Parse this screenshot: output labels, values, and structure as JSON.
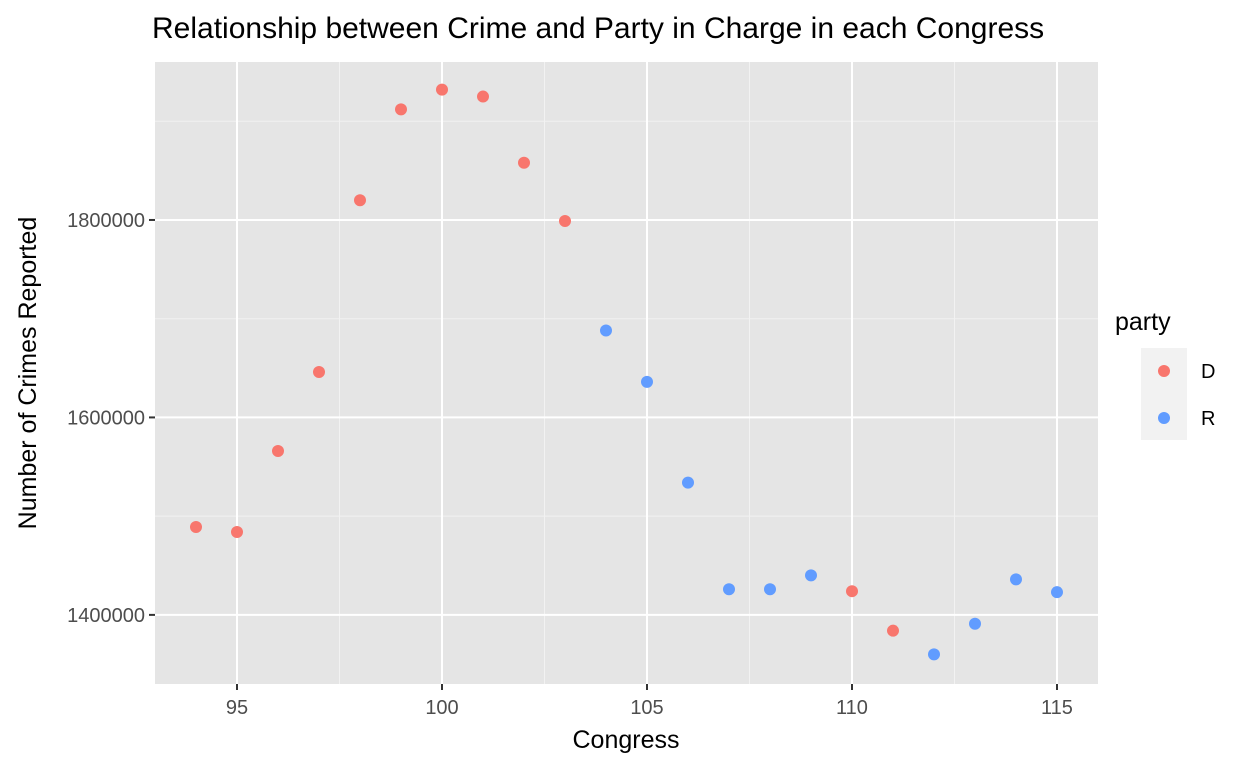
{
  "chart_data": {
    "type": "scatter",
    "title": "Relationship between Crime and Party in Charge in each Congress",
    "xlabel": "Congress",
    "ylabel": "Number of Crimes Reported",
    "xlim": [
      93,
      116
    ],
    "ylim": [
      1330000,
      1960000
    ],
    "x_ticks": [
      95,
      100,
      105,
      110,
      115
    ],
    "x_tick_labels": [
      "95",
      "100",
      "105",
      "110",
      "115"
    ],
    "x_minor_ticks": [
      97.5,
      102.5,
      107.5,
      112.5
    ],
    "y_ticks": [
      1400000,
      1600000,
      1800000
    ],
    "y_tick_labels": [
      "1400000",
      "1600000",
      "1800000"
    ],
    "y_minor_ticks": [
      1500000,
      1700000,
      1900000
    ],
    "grid": true,
    "background_color": "#e5e5e5",
    "legend": {
      "title": "party",
      "placement": "right",
      "entries": [
        {
          "label": "D",
          "color": "#f8766d"
        },
        {
          "label": "R",
          "color": "#619cff"
        }
      ]
    },
    "series": [
      {
        "name": "D",
        "color": "#f8766d",
        "points": [
          {
            "x": 94,
            "y": 1489000
          },
          {
            "x": 95,
            "y": 1484000
          },
          {
            "x": 96,
            "y": 1566000
          },
          {
            "x": 97,
            "y": 1646000
          },
          {
            "x": 98,
            "y": 1820000
          },
          {
            "x": 99,
            "y": 1912000
          },
          {
            "x": 100,
            "y": 1932000
          },
          {
            "x": 101,
            "y": 1925000
          },
          {
            "x": 102,
            "y": 1858000
          },
          {
            "x": 103,
            "y": 1799000
          },
          {
            "x": 110,
            "y": 1424000
          },
          {
            "x": 111,
            "y": 1384000
          }
        ]
      },
      {
        "name": "R",
        "color": "#619cff",
        "points": [
          {
            "x": 104,
            "y": 1688000
          },
          {
            "x": 105,
            "y": 1636000
          },
          {
            "x": 106,
            "y": 1534000
          },
          {
            "x": 107,
            "y": 1426000
          },
          {
            "x": 108,
            "y": 1426000
          },
          {
            "x": 109,
            "y": 1440000
          },
          {
            "x": 112,
            "y": 1360000
          },
          {
            "x": 113,
            "y": 1391000
          },
          {
            "x": 114,
            "y": 1436000
          },
          {
            "x": 115,
            "y": 1423000
          }
        ]
      }
    ]
  }
}
